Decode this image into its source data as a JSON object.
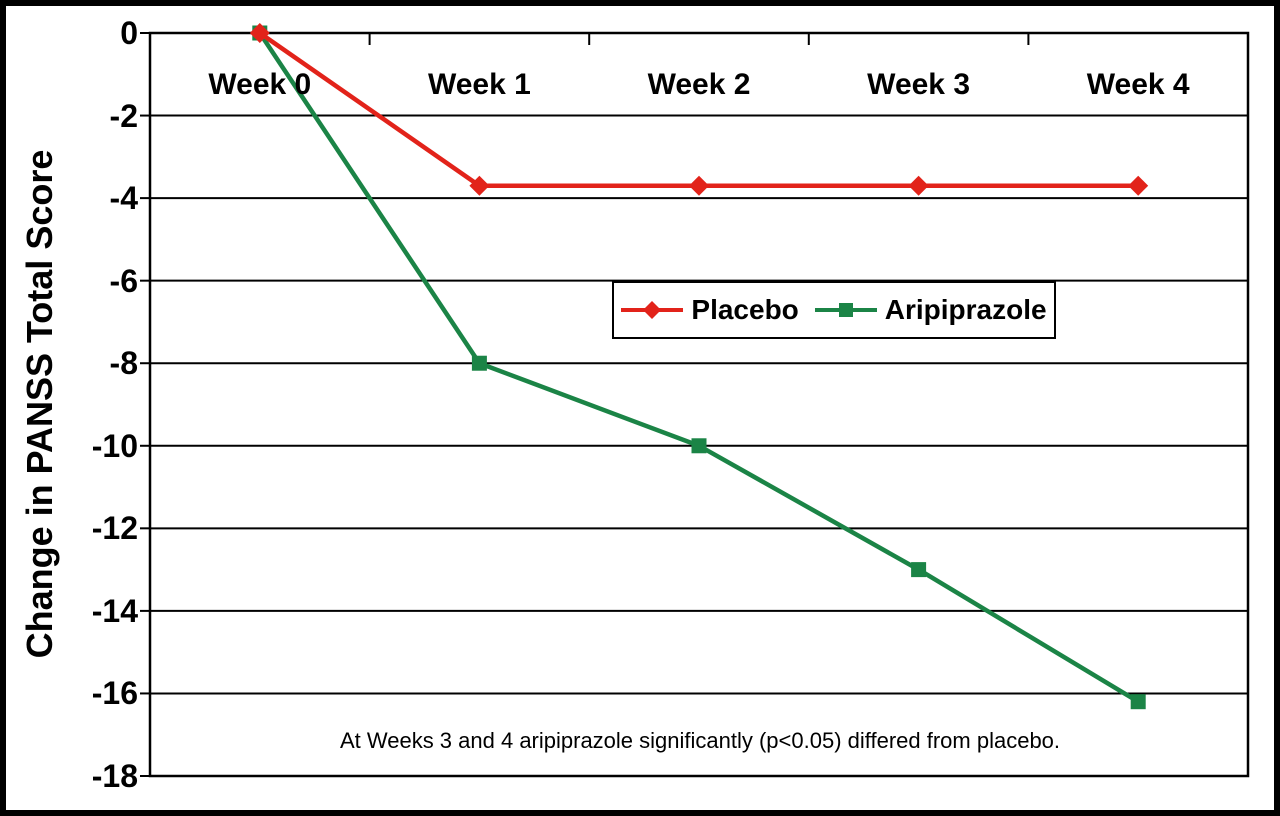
{
  "chart_data": {
    "type": "line",
    "title": "",
    "ylabel": "Change in PANSS Total Score",
    "xlabel": "",
    "categories": [
      "Week 0",
      "Week 1",
      "Week 2",
      "Week 3",
      "Week 4"
    ],
    "series": [
      {
        "name": "Placebo",
        "marker": "diamond",
        "color": "#E2231A",
        "values": [
          0,
          -3.7,
          -3.7,
          -3.7,
          -3.7
        ]
      },
      {
        "name": "Aripiprazole",
        "marker": "square",
        "color": "#1B8446",
        "values": [
          0,
          -8,
          -10,
          -13,
          -16.2
        ]
      }
    ],
    "ylim": [
      -18,
      0
    ],
    "yticks": [
      0,
      -2,
      -4,
      -6,
      -8,
      -10,
      -12,
      -14,
      -16,
      -18
    ],
    "grid": true,
    "legend_position": "center",
    "annotation": "At Weeks 3 and 4 aripiprazole significantly (p<0.05) differed from placebo."
  }
}
